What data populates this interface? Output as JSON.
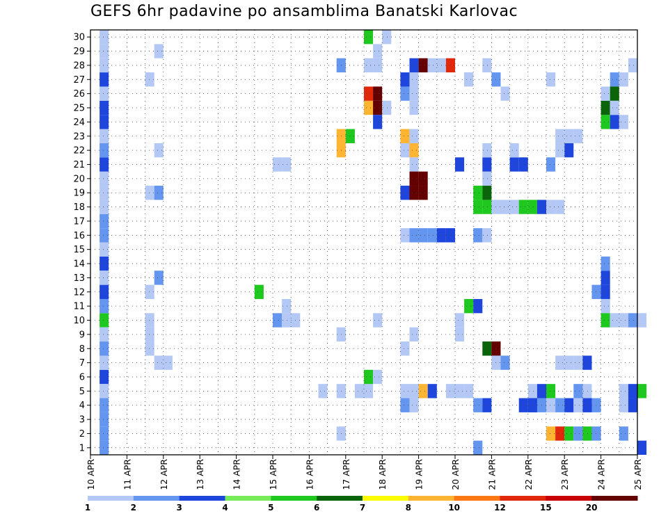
{
  "chart_data": {
    "type": "heatmap",
    "title": "GEFS 6hr padavine po ansamblima Banatski Karlovac",
    "y_members": [
      1,
      2,
      3,
      4,
      5,
      6,
      7,
      8,
      9,
      10,
      11,
      12,
      13,
      14,
      15,
      16,
      17,
      18,
      19,
      20,
      21,
      22,
      23,
      24,
      25,
      26,
      27,
      28,
      29,
      30
    ],
    "x_labels": [
      "10 APR",
      "11 APR",
      "12 APR",
      "13 APR",
      "14 APR",
      "15 APR",
      "16 APR",
      "17 APR",
      "18 APR",
      "19 APR",
      "20 APR",
      "21 APR",
      "22 APR",
      "23 APR",
      "24 APR",
      "25 APR"
    ],
    "x_unit_note": "x = forecast time in days since 10 APR 00z, cells are 6 h wide",
    "xlim": [
      0,
      15
    ],
    "ylim": [
      0.5,
      30.5
    ],
    "grid": true,
    "colorbar": {
      "ticks": [
        "1",
        "2",
        "3",
        "4",
        "5",
        "6",
        "7",
        "8",
        "10",
        "12",
        "15",
        "20"
      ],
      "colors": [
        "#b4c8f5",
        "#6496f0",
        "#1e46dc",
        "#78eb5a",
        "#1ec81e",
        "#0a640a",
        "#ffff00",
        "#ffb432",
        "#ff7814",
        "#e1280a",
        "#c80000",
        "#640000"
      ]
    },
    "series_cells": [
      [
        1,
        0.25,
        1
      ],
      [
        3,
        0.25,
        2
      ],
      [
        6,
        0.25,
        3
      ],
      [
        7,
        0.25,
        1
      ],
      [
        8,
        0.25,
        2
      ],
      [
        10,
        0.25,
        5
      ],
      [
        11,
        0.25,
        2
      ],
      [
        12,
        0.25,
        3
      ],
      [
        14,
        0.25,
        3
      ],
      [
        15,
        0.25,
        1
      ],
      [
        16,
        0.25,
        2
      ],
      [
        17,
        0.25,
        2
      ],
      [
        19,
        0.25,
        1
      ],
      [
        20,
        0.25,
        1
      ],
      [
        21,
        0.25,
        3
      ],
      [
        22,
        0.25,
        2
      ],
      [
        23,
        0.25,
        1
      ],
      [
        24,
        0.25,
        3
      ],
      [
        25,
        0.25,
        3
      ],
      [
        26,
        0.25,
        1
      ],
      [
        27,
        0.25,
        3
      ],
      [
        29,
        0.25,
        1
      ],
      [
        30,
        0.25,
        1
      ],
      [
        1,
        0.25,
        2
      ],
      [
        2,
        0.25,
        2
      ],
      [
        4,
        0.25,
        2
      ],
      [
        5,
        0.25,
        1
      ],
      [
        9,
        0.25,
        1
      ],
      [
        13,
        0.25,
        1
      ],
      [
        18,
        0.25,
        1
      ],
      [
        28,
        0.25,
        1
      ],
      [
        7,
        1.75,
        1
      ],
      [
        7,
        2.0,
        1
      ],
      [
        8,
        1.5,
        1
      ],
      [
        9,
        1.5,
        1
      ],
      [
        10,
        1.5,
        1
      ],
      [
        12,
        1.5,
        1
      ],
      [
        13,
        1.75,
        2
      ],
      [
        19,
        1.5,
        1
      ],
      [
        19,
        1.75,
        2
      ],
      [
        22,
        1.75,
        1
      ],
      [
        27,
        1.5,
        1
      ],
      [
        29,
        1.75,
        1
      ],
      [
        12,
        4.5,
        5
      ],
      [
        10,
        5.0,
        2
      ],
      [
        10,
        5.25,
        1
      ],
      [
        10,
        5.5,
        1
      ],
      [
        11,
        5.25,
        1
      ],
      [
        21,
        5.0,
        1
      ],
      [
        21,
        5.25,
        1
      ],
      [
        5,
        6.25,
        1
      ],
      [
        5,
        6.75,
        1
      ],
      [
        9,
        6.75,
        1
      ],
      [
        2,
        6.75,
        1
      ],
      [
        22,
        6.75,
        8
      ],
      [
        23,
        6.75,
        8
      ],
      [
        23,
        7.0,
        5
      ],
      [
        28,
        6.75,
        2
      ],
      [
        5,
        7.25,
        1
      ],
      [
        5,
        7.5,
        1
      ],
      [
        6,
        7.5,
        5
      ],
      [
        6,
        7.75,
        1
      ],
      [
        10,
        7.75,
        1
      ],
      [
        25,
        7.5,
        8
      ],
      [
        25,
        7.75,
        14
      ],
      [
        26,
        7.5,
        10
      ],
      [
        26,
        7.75,
        15
      ],
      [
        30,
        7.5,
        5
      ],
      [
        30,
        8.0,
        1
      ],
      [
        28,
        7.5,
        1
      ],
      [
        28,
        7.75,
        1
      ],
      [
        24,
        7.75,
        3
      ],
      [
        25,
        8.0,
        1
      ],
      [
        29,
        7.75,
        1
      ],
      [
        5,
        8.5,
        1
      ],
      [
        8,
        8.5,
        1
      ],
      [
        4,
        8.5,
        2
      ],
      [
        9,
        8.75,
        1
      ],
      [
        4,
        8.75,
        1
      ],
      [
        19,
        8.5,
        3
      ],
      [
        21,
        8.75,
        1
      ],
      [
        22,
        8.5,
        1
      ],
      [
        22,
        8.75,
        8
      ],
      [
        23,
        8.5,
        8
      ],
      [
        23,
        8.75,
        1
      ],
      [
        26,
        8.5,
        2
      ],
      [
        26,
        8.75,
        1
      ],
      [
        27,
        8.5,
        3
      ],
      [
        27,
        8.75,
        1
      ],
      [
        16,
        8.5,
        1
      ],
      [
        16,
        8.75,
        2
      ],
      [
        16,
        9.0,
        2
      ],
      [
        16,
        9.25,
        2
      ],
      [
        20,
        8.75,
        15
      ],
      [
        20,
        9.0,
        14
      ],
      [
        19,
        8.75,
        15
      ],
      [
        19,
        9.0,
        15
      ],
      [
        28,
        8.75,
        3
      ],
      [
        28,
        9.0,
        14
      ],
      [
        5,
        8.75,
        1
      ],
      [
        5,
        9.0,
        8
      ],
      [
        5,
        9.25,
        3
      ],
      [
        16,
        9.5,
        3
      ],
      [
        16,
        9.75,
        3
      ],
      [
        25,
        8.75,
        1
      ],
      [
        28,
        9.25,
        1
      ],
      [
        28,
        9.5,
        1
      ],
      [
        28,
        9.75,
        10
      ],
      [
        5,
        9.75,
        1
      ],
      [
        5,
        10.0,
        1
      ],
      [
        5,
        10.25,
        1
      ],
      [
        9,
        10.0,
        1
      ],
      [
        10,
        10.0,
        1
      ],
      [
        11,
        10.25,
        5
      ],
      [
        11,
        10.5,
        3
      ],
      [
        16,
        10.5,
        2
      ],
      [
        16,
        10.75,
        1
      ],
      [
        21,
        10.0,
        3
      ],
      [
        27,
        10.25,
        1
      ],
      [
        1,
        10.5,
        2
      ],
      [
        4,
        10.5,
        2
      ],
      [
        4,
        10.75,
        3
      ],
      [
        18,
        10.5,
        5
      ],
      [
        18,
        10.75,
        5
      ],
      [
        18,
        11.0,
        1
      ],
      [
        18,
        11.25,
        1
      ],
      [
        18,
        11.5,
        1
      ],
      [
        19,
        10.5,
        5
      ],
      [
        19,
        10.75,
        6
      ],
      [
        20,
        10.75,
        1
      ],
      [
        21,
        10.75,
        3
      ],
      [
        22,
        10.75,
        1
      ],
      [
        27,
        10.25,
        1
      ],
      [
        28,
        10.75,
        1
      ],
      [
        8,
        10.75,
        6
      ],
      [
        8,
        11.0,
        14
      ],
      [
        7,
        11.0,
        1
      ],
      [
        7,
        11.25,
        2
      ],
      [
        18,
        11.75,
        5
      ],
      [
        18,
        12.0,
        5
      ],
      [
        18,
        12.25,
        3
      ],
      [
        18,
        12.5,
        1
      ],
      [
        18,
        12.75,
        1
      ],
      [
        21,
        11.5,
        3
      ],
      [
        21,
        11.75,
        3
      ],
      [
        22,
        11.5,
        1
      ],
      [
        26,
        11.25,
        1
      ],
      [
        27,
        11.0,
        2
      ],
      [
        27,
        12.5,
        1
      ],
      [
        5,
        12.0,
        1
      ],
      [
        5,
        12.25,
        3
      ],
      [
        5,
        12.5,
        5
      ],
      [
        4,
        11.75,
        3
      ],
      [
        4,
        12.0,
        3
      ],
      [
        4,
        12.25,
        2
      ],
      [
        4,
        12.5,
        1
      ],
      [
        4,
        12.75,
        2
      ],
      [
        4,
        13.0,
        3
      ],
      [
        4,
        12.0,
        3
      ],
      [
        2,
        12.5,
        8
      ],
      [
        2,
        12.75,
        10
      ],
      [
        2,
        13.0,
        5
      ],
      [
        2,
        13.25,
        2
      ],
      [
        2,
        13.5,
        5
      ],
      [
        2,
        13.75,
        2
      ],
      [
        12,
        13.75,
        2
      ],
      [
        7,
        12.75,
        1
      ],
      [
        7,
        13.0,
        1
      ],
      [
        7,
        13.25,
        1
      ],
      [
        7,
        13.5,
        3
      ],
      [
        21,
        12.5,
        2
      ],
      [
        22,
        13.0,
        3
      ],
      [
        5,
        13.25,
        2
      ],
      [
        5,
        13.5,
        1
      ],
      [
        4,
        13.75,
        2
      ],
      [
        4,
        13.25,
        1
      ],
      [
        4,
        13.5,
        3
      ],
      [
        22,
        12.75,
        1
      ],
      [
        23,
        12.75,
        1
      ],
      [
        23,
        13.0,
        1
      ],
      [
        23,
        13.25,
        1
      ],
      [
        13,
        14.0,
        3
      ],
      [
        12,
        14.0,
        3
      ],
      [
        11,
        14.0,
        1
      ],
      [
        10,
        14.0,
        5
      ],
      [
        10,
        14.25,
        1
      ],
      [
        10,
        14.5,
        1
      ],
      [
        10,
        14.75,
        2
      ],
      [
        10,
        15.0,
        1
      ],
      [
        14,
        14.0,
        2
      ],
      [
        24,
        14.0,
        5
      ],
      [
        24,
        14.25,
        3
      ],
      [
        24,
        14.5,
        1
      ],
      [
        25,
        14.0,
        6
      ],
      [
        25,
        14.25,
        1
      ],
      [
        26,
        14.0,
        1
      ],
      [
        26,
        14.25,
        6
      ],
      [
        27,
        14.25,
        2
      ],
      [
        27,
        14.5,
        1
      ],
      [
        28,
        14.75,
        1
      ],
      [
        5,
        14.5,
        1
      ],
      [
        5,
        14.75,
        3
      ],
      [
        5,
        15.0,
        5
      ],
      [
        4,
        14.5,
        1
      ],
      [
        4,
        14.75,
        3
      ],
      [
        2,
        14.5,
        2
      ],
      [
        1,
        15.0,
        3
      ]
    ]
  },
  "ylabels": [
    "30",
    "29",
    "28",
    "27",
    "26",
    "25",
    "24",
    "23",
    "22",
    "21",
    "20",
    "19",
    "18",
    "17",
    "16",
    "15",
    "14",
    "13",
    "12",
    "11",
    "10",
    "9",
    "8",
    "7",
    "6",
    "5",
    "4",
    "3",
    "2",
    "1"
  ]
}
